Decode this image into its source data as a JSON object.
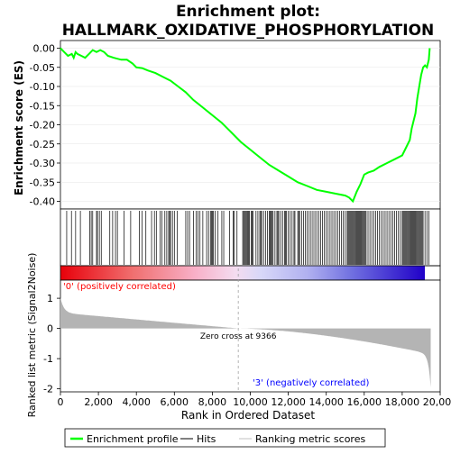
{
  "chart_data": {
    "type": "line",
    "title_line1": "Enrichment plot:",
    "title_line2": "HALLMARK_OXIDATIVE_PHOSPHORYLATION",
    "top_ylabel": "Enrichment score (ES)",
    "bottom_ylabel_line1": "Ranked list metric (Signal2Noise)",
    "xlabel": "Rank in Ordered Dataset",
    "xlim": [
      0,
      20000
    ],
    "xticks": [
      0,
      2000,
      4000,
      6000,
      8000,
      10000,
      12000,
      14000,
      16000,
      18000,
      20000
    ],
    "xtick_labels": [
      "0",
      "2,000",
      "4,000",
      "6,000",
      "8,000",
      "10,000",
      "12,000",
      "14,000",
      "16,000",
      "18,000",
      "20,000"
    ],
    "es_ylim": [
      -0.42,
      0.02
    ],
    "es_yticks": [
      0.0,
      -0.05,
      -0.1,
      -0.15,
      -0.2,
      -0.25,
      -0.3,
      -0.35,
      -0.4
    ],
    "es_ytick_labels": [
      "0.00",
      "-0.05",
      "-0.10",
      "-0.15",
      "-0.20",
      "-0.25",
      "-0.30",
      "-0.35",
      "-0.40"
    ],
    "metric_ylim": [
      -2.1,
      1.6
    ],
    "metric_yticks": [
      1,
      0,
      -1,
      -2
    ],
    "metric_ytick_labels": [
      "1",
      "0",
      "-1",
      "-2"
    ],
    "n_genes": 19500,
    "zero_cross": 9366,
    "zero_cross_label": "Zero cross at 9366",
    "pos_label": "'0' (positively correlated)",
    "neg_label": "'3' (negatively correlated)",
    "series": [
      {
        "name": "Enrichment profile",
        "color": "#00ff00",
        "x": [
          0,
          200,
          400,
          600,
          700,
          800,
          900,
          1100,
          1300,
          1500,
          1700,
          1900,
          2100,
          2300,
          2500,
          2800,
          3200,
          3500,
          3800,
          4000,
          4300,
          4600,
          5000,
          5400,
          5800,
          6200,
          6600,
          7000,
          7500,
          8000,
          8500,
          9000,
          9500,
          10000,
          10500,
          11000,
          11500,
          12000,
          12500,
          13000,
          13500,
          14000,
          14500,
          15000,
          15200,
          15400,
          15600,
          15800,
          16000,
          16200,
          16500,
          16800,
          17200,
          17600,
          18000,
          18200,
          18400,
          18500,
          18600,
          18700,
          18800,
          18900,
          19000,
          19100,
          19200,
          19300,
          19400,
          19450
        ],
        "y": [
          0.0,
          -0.01,
          -0.02,
          -0.015,
          -0.025,
          -0.01,
          -0.015,
          -0.02,
          -0.025,
          -0.015,
          -0.005,
          -0.01,
          -0.005,
          -0.01,
          -0.02,
          -0.025,
          -0.03,
          -0.03,
          -0.04,
          -0.05,
          -0.052,
          -0.058,
          -0.065,
          -0.075,
          -0.085,
          -0.1,
          -0.115,
          -0.135,
          -0.155,
          -0.175,
          -0.195,
          -0.22,
          -0.245,
          -0.265,
          -0.285,
          -0.305,
          -0.32,
          -0.335,
          -0.35,
          -0.36,
          -0.37,
          -0.375,
          -0.38,
          -0.385,
          -0.39,
          -0.4,
          -0.375,
          -0.355,
          -0.33,
          -0.325,
          -0.32,
          -0.31,
          -0.3,
          -0.29,
          -0.28,
          -0.26,
          -0.24,
          -0.21,
          -0.19,
          -0.17,
          -0.13,
          -0.1,
          -0.07,
          -0.05,
          -0.045,
          -0.05,
          -0.03,
          0.0
        ]
      }
    ],
    "legend": [
      {
        "label": "Enrichment profile",
        "color": "#00ff00"
      },
      {
        "label": "Hits",
        "color": "#000000"
      },
      {
        "label": "Ranking metric scores",
        "color": "#c0c0c0"
      }
    ],
    "hits": [
      330,
      580,
      800,
      1050,
      1550,
      1620,
      1700,
      1900,
      1950,
      2050,
      2150,
      2600,
      2750,
      2900,
      3000,
      3350,
      3700,
      4150,
      4300,
      4500,
      4800,
      4950,
      5050,
      5250,
      5350,
      5500,
      5600,
      5700,
      5750,
      5800,
      5900,
      6000,
      6150,
      6600,
      6700,
      6800,
      7000,
      7150,
      7250,
      7350,
      7500,
      7700,
      7800,
      7900,
      7950,
      8000,
      8050,
      8150,
      8300,
      8500,
      8600,
      8900,
      9100,
      9150,
      9300,
      9600,
      9650,
      9700,
      9750,
      9800,
      9850,
      9900,
      9950,
      10050,
      10100,
      10150,
      10300,
      10400,
      10500,
      10550,
      10600,
      10700,
      10800,
      10900,
      11000,
      11050,
      11100,
      11150,
      11200,
      11300,
      11400,
      11450,
      11500,
      11600,
      11700,
      11800,
      11850,
      11900,
      12000,
      12100,
      12200,
      12300,
      12350,
      12500,
      12550,
      12600,
      12700,
      12800,
      12900,
      13000,
      13100,
      13200,
      13300,
      13400,
      13500,
      13600,
      13700,
      13800,
      13900,
      14000,
      14100,
      14200,
      14300,
      14400,
      14500,
      14600,
      14700,
      14800,
      14900,
      15000,
      15100,
      15150,
      15200,
      15250,
      15300,
      15350,
      15400,
      15450,
      15500,
      15550,
      15600,
      15650,
      15700,
      15750,
      15800,
      15850,
      15900,
      15950,
      16000,
      16050,
      16100,
      16200,
      16300,
      16400,
      16500,
      16600,
      16700,
      16800,
      16900,
      17000,
      17100,
      17200,
      17300,
      17400,
      17500,
      17600,
      17700,
      17800,
      17900,
      18000,
      18050,
      18100,
      18150,
      18200,
      18250,
      18300,
      18350,
      18400,
      18450,
      18500,
      18550,
      18600,
      18650,
      18700,
      18750,
      18800,
      18850,
      18900,
      18950,
      19000,
      19050,
      19100,
      19200,
      19300,
      19400
    ]
  }
}
